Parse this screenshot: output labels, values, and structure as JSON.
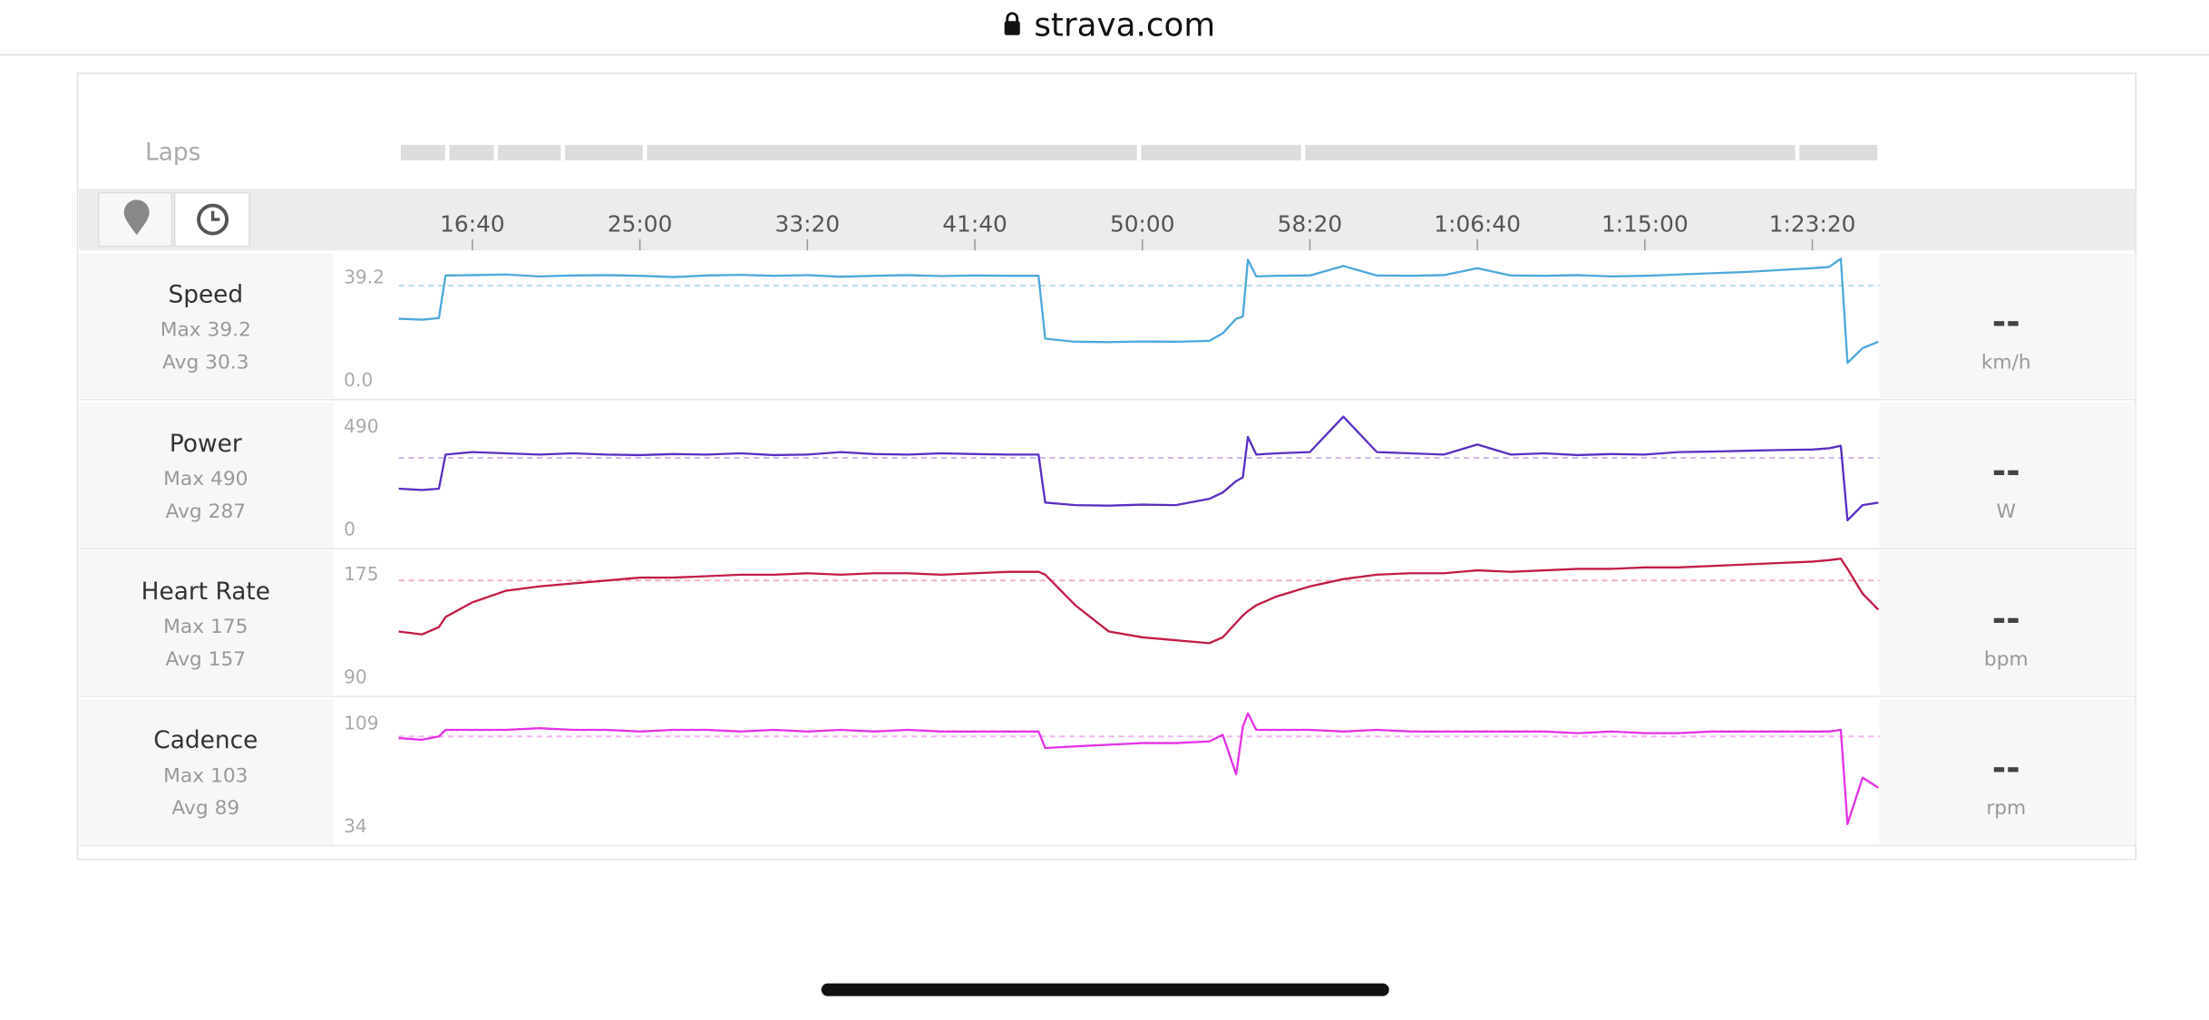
{
  "browser": {
    "url": "strava.com"
  },
  "laps_label": "Laps",
  "laps": [
    {
      "start": 780,
      "end": 925
    },
    {
      "start": 925,
      "end": 1070
    },
    {
      "start": 1070,
      "end": 1270
    },
    {
      "start": 1270,
      "end": 1515
    },
    {
      "start": 1515,
      "end": 2990
    },
    {
      "start": 2990,
      "end": 3480
    },
    {
      "start": 3480,
      "end": 4955
    },
    {
      "start": 4955,
      "end": 5200
    }
  ],
  "time_axis": {
    "xlim": [
      780,
      5200
    ],
    "xticks": [
      {
        "value": 1000,
        "label": "16:40"
      },
      {
        "value": 1500,
        "label": "25:00"
      },
      {
        "value": 2000,
        "label": "33:20"
      },
      {
        "value": 2500,
        "label": "41:40"
      },
      {
        "value": 3000,
        "label": "50:00"
      },
      {
        "value": 3500,
        "label": "58:20"
      },
      {
        "value": 4000,
        "label": "1:06:40"
      },
      {
        "value": 4500,
        "label": "1:15:00"
      },
      {
        "value": 5000,
        "label": "1:23:20"
      }
    ]
  },
  "chart_data": [
    {
      "type": "line",
      "name": "Speed",
      "max_label": "Max 39.2",
      "avg_label": "Avg 30.3",
      "avg": 30.3,
      "color": "#4ea8da",
      "avg_color": "#b9ddf2",
      "ylim": [
        0,
        39.2
      ],
      "yticks": [
        {
          "value": 0,
          "label": "0.0"
        },
        39.2
      ],
      "current": "--",
      "unit": "km/h",
      "x": [
        780,
        850,
        900,
        920,
        1000,
        1100,
        1200,
        1300,
        1400,
        1500,
        1600,
        1700,
        1800,
        1900,
        2000,
        2100,
        2200,
        2300,
        2400,
        2500,
        2600,
        2690,
        2710,
        2800,
        2900,
        3000,
        3100,
        3200,
        3240,
        3280,
        3300,
        3315,
        3340,
        3400,
        3500,
        3600,
        3700,
        3800,
        3900,
        4000,
        4100,
        4200,
        4300,
        4400,
        4500,
        4600,
        4700,
        4800,
        4900,
        5000,
        5050,
        5085,
        5105,
        5150,
        5197
      ],
      "values": [
        19.8,
        19.5,
        20,
        33.5,
        33.6,
        33.8,
        33.2,
        33.5,
        33.6,
        33.4,
        33.0,
        33.5,
        33.7,
        33.4,
        33.6,
        33.1,
        33.4,
        33.6,
        33.3,
        33.5,
        33.4,
        33.4,
        13.5,
        12.5,
        12.4,
        12.6,
        12.5,
        12.8,
        15.2,
        19.8,
        20.5,
        38.5,
        33.2,
        33.4,
        33.5,
        36.5,
        33.5,
        33.4,
        33.6,
        35.8,
        33.5,
        33.4,
        33.6,
        33.2,
        33.4,
        33.8,
        34.2,
        34.6,
        35.2,
        35.8,
        36.2,
        38.8,
        5.8,
        10.5,
        12.5
      ]
    },
    {
      "type": "line",
      "name": "Power",
      "max_label": "Max 490",
      "avg_label": "Avg 287",
      "avg": 287,
      "color": "#5a2fc2",
      "avg_color": "#d3b8f2",
      "ylim": [
        0,
        490
      ],
      "yticks": [
        0,
        490
      ],
      "current": "--",
      "unit": "W",
      "x": [
        780,
        850,
        900,
        920,
        1000,
        1100,
        1200,
        1300,
        1400,
        1500,
        1600,
        1700,
        1800,
        1900,
        2000,
        2100,
        2200,
        2300,
        2400,
        2500,
        2600,
        2690,
        2710,
        2800,
        2900,
        3000,
        3100,
        3200,
        3240,
        3280,
        3300,
        3315,
        3340,
        3400,
        3500,
        3600,
        3700,
        3800,
        3900,
        4000,
        4100,
        4200,
        4300,
        4400,
        4500,
        4600,
        4700,
        4800,
        4900,
        5000,
        5050,
        5085,
        5105,
        5150,
        5197
      ],
      "values": [
        165,
        160,
        165,
        300,
        310,
        305,
        300,
        305,
        300,
        298,
        302,
        300,
        305,
        298,
        300,
        310,
        302,
        300,
        305,
        302,
        300,
        300,
        110,
        100,
        98,
        102,
        100,
        125,
        150,
        195,
        210,
        370,
        300,
        305,
        310,
        450,
        310,
        305,
        300,
        340,
        300,
        305,
        298,
        302,
        300,
        310,
        312,
        315,
        318,
        320,
        325,
        335,
        40,
        100,
        110
      ]
    },
    {
      "type": "line",
      "name": "Heart Rate",
      "max_label": "Max 175",
      "avg_label": "Avg 157",
      "avg": 157,
      "color": "#c21c45",
      "avg_color": "#f2b3c3",
      "ylim": [
        90,
        175
      ],
      "yticks": [
        90,
        175
      ],
      "current": "--",
      "unit": "bpm",
      "x": [
        780,
        850,
        900,
        920,
        1000,
        1100,
        1200,
        1300,
        1400,
        1500,
        1600,
        1700,
        1800,
        1900,
        2000,
        2100,
        2200,
        2300,
        2400,
        2500,
        2600,
        2690,
        2710,
        2800,
        2900,
        3000,
        3100,
        3200,
        3240,
        3280,
        3300,
        3315,
        3340,
        3400,
        3500,
        3600,
        3700,
        3800,
        3900,
        4000,
        4100,
        4200,
        4300,
        4400,
        4500,
        4600,
        4700,
        4800,
        4900,
        5000,
        5050,
        5085,
        5105,
        5150,
        5197
      ],
      "values": [
        122,
        120,
        125,
        132,
        142,
        150,
        153,
        155,
        157,
        159,
        159,
        160,
        161,
        161,
        162,
        161,
        162,
        162,
        161,
        162,
        163,
        163,
        161,
        140,
        122,
        118,
        116,
        114,
        118,
        128,
        133,
        136,
        140,
        146,
        153,
        158,
        161,
        162,
        162,
        164,
        163,
        164,
        165,
        165,
        166,
        166,
        167,
        168,
        169,
        170,
        171,
        172,
        165,
        148,
        137
      ]
    },
    {
      "type": "line",
      "name": "Cadence",
      "max_label": "Max 103",
      "avg_label": "Avg 89",
      "avg": 89,
      "color": "#e332e6",
      "avg_color": "#f1b5f2",
      "ylim": [
        34,
        109
      ],
      "yticks": [
        34,
        109
      ],
      "current": "--",
      "unit": "rpm",
      "x": [
        780,
        850,
        900,
        920,
        1000,
        1100,
        1200,
        1300,
        1400,
        1500,
        1600,
        1700,
        1800,
        1900,
        2000,
        2100,
        2200,
        2300,
        2400,
        2500,
        2600,
        2690,
        2710,
        2800,
        2900,
        3000,
        3100,
        3200,
        3240,
        3280,
        3300,
        3315,
        3340,
        3400,
        3500,
        3600,
        3700,
        3800,
        3900,
        4000,
        4100,
        4200,
        4300,
        4400,
        4500,
        4600,
        4700,
        4800,
        4900,
        5000,
        5050,
        5085,
        5105,
        5150,
        5197
      ],
      "values": [
        88,
        87,
        89,
        93,
        93,
        93,
        94,
        93,
        93,
        92,
        93,
        93,
        92,
        93,
        92,
        93,
        92,
        93,
        92,
        92,
        92,
        92,
        82,
        83,
        84,
        85,
        85,
        86,
        90,
        66,
        95,
        103,
        93,
        93,
        93,
        92,
        93,
        92,
        92,
        92,
        92,
        92,
        91,
        92,
        91,
        91,
        92,
        92,
        92,
        92,
        92,
        93,
        36,
        64,
        58
      ]
    }
  ]
}
